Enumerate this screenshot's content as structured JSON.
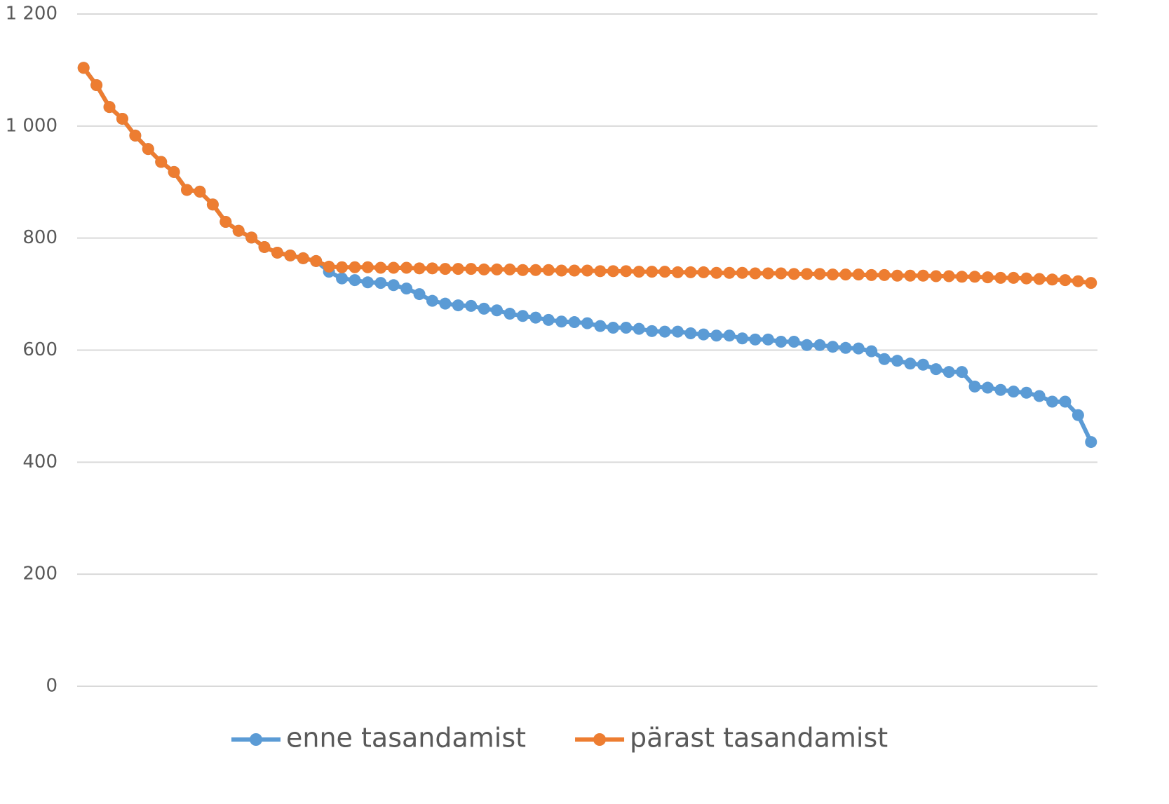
{
  "chart_data": {
    "type": "line",
    "categories": [
      null,
      null,
      null,
      null,
      null,
      null,
      null,
      null,
      null,
      null,
      null,
      null,
      null,
      null,
      null,
      null,
      null,
      null,
      null,
      null,
      null,
      null,
      null,
      null,
      null,
      null,
      null,
      null,
      null,
      null,
      null,
      null,
      null,
      null,
      null,
      null,
      null,
      null,
      null,
      null,
      null,
      null,
      null,
      null,
      null,
      null,
      null,
      null,
      null,
      null,
      null,
      null,
      null,
      null,
      null,
      null,
      null,
      null,
      null,
      null,
      null,
      null,
      null,
      null,
      null,
      null,
      null,
      null,
      null,
      null,
      null,
      null,
      null,
      null,
      null,
      null,
      null,
      null,
      null
    ],
    "series": [
      {
        "name": "enne tasandamist",
        "color": "#5b9bd5",
        "values": [
          1104,
          1073,
          1034,
          1013,
          983,
          959,
          936,
          918,
          886,
          883,
          860,
          829,
          813,
          801,
          784,
          774,
          769,
          764,
          759,
          740,
          728,
          725,
          721,
          720,
          716,
          710,
          700,
          688,
          683,
          680,
          679,
          674,
          671,
          665,
          661,
          658,
          654,
          651,
          650,
          648,
          643,
          640,
          640,
          638,
          634,
          633,
          633,
          630,
          628,
          626,
          626,
          621,
          619,
          619,
          615,
          615,
          609,
          609,
          606,
          604,
          603,
          598,
          584,
          581,
          576,
          574,
          566,
          561,
          561,
          535,
          533,
          529,
          526,
          524,
          518,
          508,
          508,
          484,
          436
        ]
      },
      {
        "name": "pärast tasandamist",
        "color": "#ed7d31",
        "values": [
          1104,
          1073,
          1034,
          1013,
          983,
          959,
          936,
          918,
          886,
          883,
          860,
          829,
          813,
          801,
          784,
          774,
          769,
          764,
          759,
          749,
          748,
          748,
          748,
          747,
          747,
          747,
          746,
          746,
          745,
          745,
          745,
          744,
          744,
          744,
          743,
          743,
          743,
          742,
          742,
          742,
          741,
          741,
          741,
          740,
          740,
          740,
          739,
          739,
          739,
          738,
          738,
          738,
          737,
          737,
          737,
          736,
          736,
          736,
          735,
          735,
          735,
          734,
          734,
          733,
          733,
          733,
          732,
          732,
          731,
          731,
          730,
          729,
          729,
          728,
          727,
          726,
          725,
          723,
          720
        ]
      }
    ],
    "ylim": [
      0,
      1200
    ],
    "yticks": [
      0,
      200,
      400,
      600,
      800,
      {
        "value": 1000,
        "label": "1 000"
      },
      {
        "value": 1200,
        "label": "1 200"
      }
    ],
    "grid": true,
    "legend": "bottom"
  }
}
